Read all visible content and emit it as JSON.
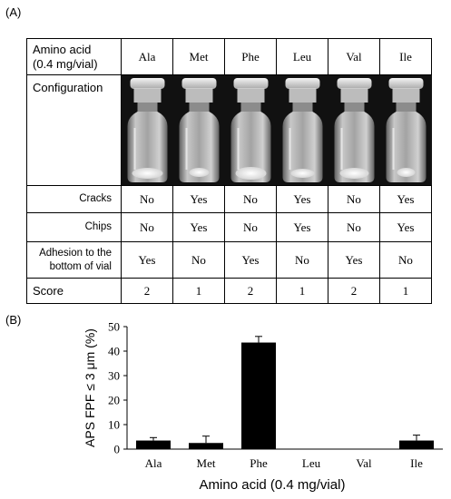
{
  "panel_a_label": "(A)",
  "panel_b_label": "(B)",
  "table": {
    "header_line1": "Amino acid",
    "header_line2": "(0.4 mg/vial)",
    "columns": [
      "Ala",
      "Met",
      "Phe",
      "Leu",
      "Val",
      "Ile"
    ],
    "configuration_label": "Configuration",
    "rows": [
      {
        "label": "Cracks",
        "values": [
          "No",
          "Yes",
          "No",
          "Yes",
          "No",
          "Yes"
        ]
      },
      {
        "label": "Chips",
        "values": [
          "No",
          "Yes",
          "No",
          "Yes",
          "No",
          "Yes"
        ]
      },
      {
        "label_line1": "Adhesion to the",
        "label_line2": "bottom of vial",
        "values": [
          "Yes",
          "No",
          "Yes",
          "No",
          "Yes",
          "No"
        ]
      },
      {
        "label": "Score",
        "values": [
          "2",
          "1",
          "2",
          "1",
          "2",
          "1"
        ]
      }
    ]
  },
  "chart_data": {
    "type": "bar",
    "categories": [
      "Ala",
      "Met",
      "Phe",
      "Leu",
      "Val",
      "Ile"
    ],
    "values": [
      3.5,
      2.5,
      43.5,
      0,
      0,
      3.5
    ],
    "errors": [
      1.2,
      2.8,
      2.5,
      0,
      0,
      2.2
    ],
    "ylabel": "APS FPF ≤ 3 μm (%)",
    "xlabel": "Amino acid (0.4 mg/vial)",
    "ylim": [
      0,
      50
    ],
    "yticks": [
      "0",
      "10",
      "20",
      "30",
      "40",
      "50"
    ],
    "bar_color": "#000000",
    "grid": false
  }
}
